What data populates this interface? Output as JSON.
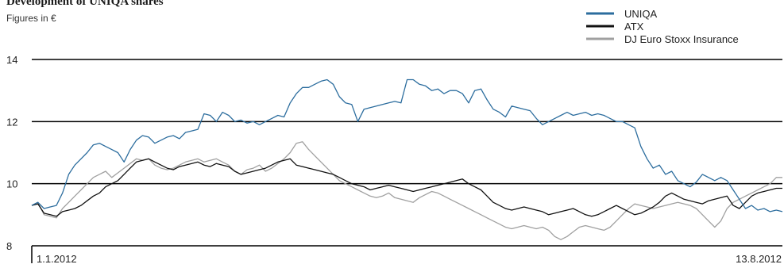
{
  "chart_data": {
    "type": "line",
    "title": "Development of  UNIQA shares",
    "subtitle": "Figures in €",
    "ylim": [
      8,
      14
    ],
    "y_ticks": [
      8,
      10,
      12,
      14
    ],
    "x_start_label": "1.1.2012",
    "x_end_label": "13.8.2012",
    "grid": true,
    "legend_position": "top-right",
    "series": [
      {
        "name": "UNIQA",
        "color": "#2c6d9e",
        "values": [
          9.3,
          9.4,
          9.2,
          9.25,
          9.3,
          9.7,
          10.3,
          10.6,
          10.8,
          11.0,
          11.25,
          11.3,
          11.2,
          11.1,
          11.0,
          10.7,
          11.1,
          11.4,
          11.55,
          11.5,
          11.3,
          11.4,
          11.5,
          11.55,
          11.45,
          11.65,
          11.7,
          11.75,
          12.25,
          12.2,
          12.0,
          12.3,
          12.2,
          12.0,
          12.05,
          11.95,
          12.0,
          11.9,
          12.0,
          12.1,
          12.2,
          12.15,
          12.6,
          12.9,
          13.1,
          13.1,
          13.2,
          13.3,
          13.35,
          13.2,
          12.8,
          12.6,
          12.55,
          12.0,
          12.4,
          12.45,
          12.5,
          12.55,
          12.6,
          12.65,
          12.6,
          13.35,
          13.35,
          13.2,
          13.15,
          13.0,
          13.05,
          12.9,
          13.0,
          13.0,
          12.9,
          12.6,
          13.0,
          13.05,
          12.7,
          12.4,
          12.3,
          12.15,
          12.5,
          12.45,
          12.4,
          12.35,
          12.1,
          11.9,
          12.0,
          12.1,
          12.2,
          12.3,
          12.2,
          12.25,
          12.3,
          12.2,
          12.25,
          12.2,
          12.1,
          12.0,
          12.0,
          11.9,
          11.8,
          11.2,
          10.8,
          10.5,
          10.6,
          10.3,
          10.4,
          10.1,
          10.0,
          9.9,
          10.05,
          10.3,
          10.2,
          10.1,
          10.2,
          10.1,
          9.8,
          9.5,
          9.2,
          9.3,
          9.15,
          9.2,
          9.1,
          9.15,
          9.1
        ]
      },
      {
        "name": "ATX",
        "color": "#111111",
        "values": [
          9.3,
          9.35,
          9.05,
          9.0,
          8.95,
          9.1,
          9.15,
          9.2,
          9.3,
          9.45,
          9.6,
          9.7,
          9.9,
          10.0,
          10.1,
          10.3,
          10.5,
          10.7,
          10.75,
          10.8,
          10.7,
          10.6,
          10.5,
          10.45,
          10.55,
          10.6,
          10.65,
          10.7,
          10.6,
          10.55,
          10.65,
          10.6,
          10.55,
          10.4,
          10.3,
          10.35,
          10.4,
          10.45,
          10.5,
          10.6,
          10.7,
          10.75,
          10.8,
          10.6,
          10.55,
          10.5,
          10.45,
          10.4,
          10.35,
          10.3,
          10.2,
          10.1,
          10.0,
          9.95,
          9.9,
          9.8,
          9.85,
          9.9,
          9.95,
          9.9,
          9.85,
          9.8,
          9.75,
          9.8,
          9.85,
          9.9,
          9.95,
          10.0,
          10.05,
          10.1,
          10.15,
          10.0,
          9.9,
          9.8,
          9.6,
          9.4,
          9.3,
          9.2,
          9.15,
          9.2,
          9.25,
          9.2,
          9.15,
          9.1,
          9.0,
          9.05,
          9.1,
          9.15,
          9.2,
          9.1,
          9.0,
          8.95,
          9.0,
          9.1,
          9.2,
          9.3,
          9.2,
          9.1,
          9.0,
          9.05,
          9.15,
          9.25,
          9.4,
          9.6,
          9.7,
          9.6,
          9.5,
          9.45,
          9.4,
          9.35,
          9.45,
          9.5,
          9.55,
          9.6,
          9.3,
          9.2,
          9.4,
          9.6,
          9.7,
          9.75,
          9.8,
          9.85,
          9.85
        ]
      },
      {
        "name": "DJ Euro Stoxx Insurance",
        "color": "#a0a0a0",
        "values": [
          9.3,
          9.4,
          9.0,
          8.95,
          8.9,
          9.2,
          9.4,
          9.6,
          9.8,
          10.0,
          10.2,
          10.3,
          10.4,
          10.2,
          10.35,
          10.5,
          10.65,
          10.8,
          10.75,
          10.8,
          10.6,
          10.5,
          10.45,
          10.5,
          10.6,
          10.7,
          10.75,
          10.8,
          10.7,
          10.75,
          10.8,
          10.7,
          10.6,
          10.4,
          10.3,
          10.45,
          10.5,
          10.6,
          10.4,
          10.5,
          10.65,
          10.8,
          11.0,
          11.3,
          11.35,
          11.1,
          10.9,
          10.7,
          10.5,
          10.3,
          10.1,
          10.0,
          9.9,
          9.8,
          9.7,
          9.6,
          9.55,
          9.6,
          9.7,
          9.55,
          9.5,
          9.45,
          9.4,
          9.55,
          9.65,
          9.75,
          9.7,
          9.6,
          9.5,
          9.4,
          9.3,
          9.2,
          9.1,
          9.0,
          8.9,
          8.8,
          8.7,
          8.6,
          8.55,
          8.6,
          8.65,
          8.6,
          8.55,
          8.6,
          8.5,
          8.3,
          8.2,
          8.3,
          8.45,
          8.6,
          8.65,
          8.6,
          8.55,
          8.5,
          8.6,
          8.8,
          9.0,
          9.2,
          9.35,
          9.3,
          9.25,
          9.2,
          9.25,
          9.3,
          9.35,
          9.4,
          9.35,
          9.3,
          9.2,
          9.0,
          8.8,
          8.6,
          8.8,
          9.2,
          9.4,
          9.5,
          9.6,
          9.7,
          9.8,
          9.9,
          10.0,
          10.2,
          10.2
        ]
      }
    ]
  }
}
